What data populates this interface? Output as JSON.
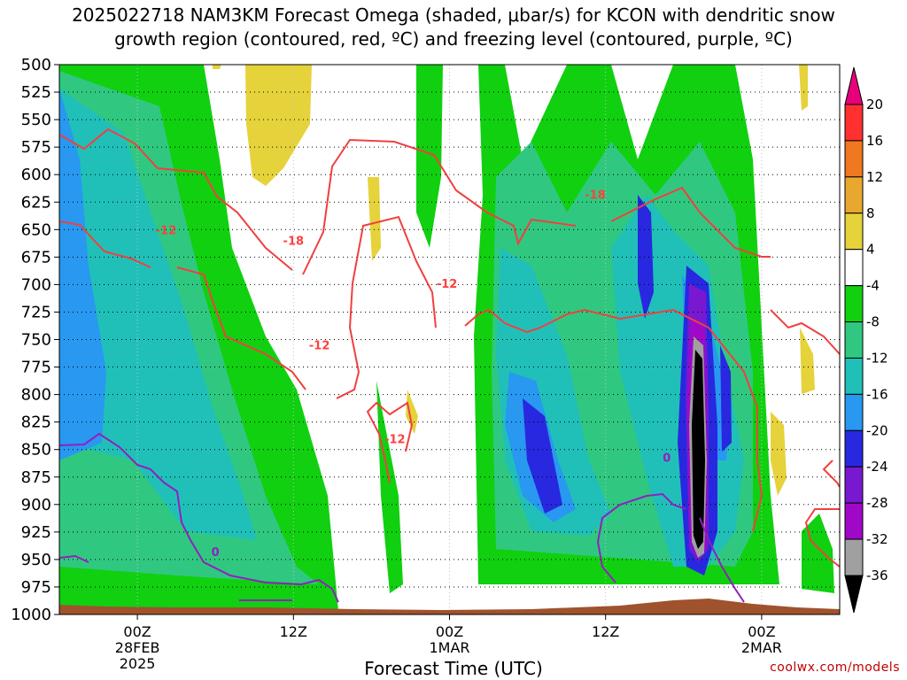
{
  "title_line1": "2025022718 NAM3KM Forecast Omega (shaded, μbar/s) for KCON with dendritic snow",
  "title_line2": "growth region (contoured, red, ºC) and freezing level (contoured, purple, ºC)",
  "credit": "coolwx.com/models",
  "chart_data": {
    "type": "heatmap",
    "title": "2025022718 NAM3KM Forecast Omega (shaded, μbar/s) for KCON with dendritic snow growth region (contoured, red, ºC) and freezing level (contoured, purple, ºC)",
    "xlabel": "Forecast Time (UTC)",
    "ylabel": "",
    "y_axis": {
      "ticks": [
        500,
        525,
        550,
        575,
        600,
        625,
        650,
        675,
        700,
        725,
        750,
        775,
        800,
        825,
        850,
        875,
        900,
        925,
        950,
        975,
        1000
      ],
      "range": [
        500,
        1000
      ],
      "inverted": true
    },
    "x_axis": {
      "ticks": [
        {
          "hour": 6,
          "line1": "00Z",
          "line2": "28FEB",
          "line3": "2025"
        },
        {
          "hour": 18,
          "line1": "12Z",
          "line2": "",
          "line3": ""
        },
        {
          "hour": 30,
          "line1": "00Z",
          "line2": "1MAR",
          "line3": ""
        },
        {
          "hour": 42,
          "line1": "12Z",
          "line2": "",
          "line3": ""
        },
        {
          "hour": 54,
          "line1": "00Z",
          "line2": "2MAR",
          "line3": ""
        }
      ],
      "range": [
        0,
        60
      ]
    },
    "colorbar": {
      "labels": [
        "20",
        "16",
        "12",
        "8",
        "4",
        "-4",
        "-8",
        "-12",
        "-16",
        "-20",
        "-24",
        "-28",
        "-32",
        "-36"
      ],
      "bins": [
        {
          "color": "#e8007a"
        },
        {
          "color": "#ff3030"
        },
        {
          "color": "#f07820"
        },
        {
          "color": "#e8a830"
        },
        {
          "color": "#e6d23a"
        },
        {
          "color": "#ffffff"
        },
        {
          "color": "#10d010"
        },
        {
          "color": "#30c880"
        },
        {
          "color": "#20c0b8"
        },
        {
          "color": "#2898f0"
        },
        {
          "color": "#2828e0"
        },
        {
          "color": "#7818d0"
        },
        {
          "color": "#a008c8"
        },
        {
          "color": "#a0a0a0"
        },
        {
          "color": "#000000"
        }
      ]
    },
    "contour_labels": [
      {
        "text": "-12",
        "hour": 8.2,
        "p": 650,
        "color": "#ff4040"
      },
      {
        "text": "-18",
        "hour": 18.0,
        "p": 660,
        "color": "#ff4040"
      },
      {
        "text": "-12",
        "hour": 20.0,
        "p": 755,
        "color": "#ff4040"
      },
      {
        "text": "-12",
        "hour": 29.8,
        "p": 699,
        "color": "#ff4040"
      },
      {
        "text": "-12",
        "hour": 25.8,
        "p": 840,
        "color": "#ff4040"
      },
      {
        "text": "-18",
        "hour": 41.2,
        "p": 618,
        "color": "#ff4040"
      },
      {
        "text": "0",
        "hour": 12.0,
        "p": 943,
        "color": "#9020c0"
      },
      {
        "text": "0",
        "hour": 46.7,
        "p": 857,
        "color": "#9020c0"
      }
    ],
    "terrain_color": "#a0522d"
  }
}
